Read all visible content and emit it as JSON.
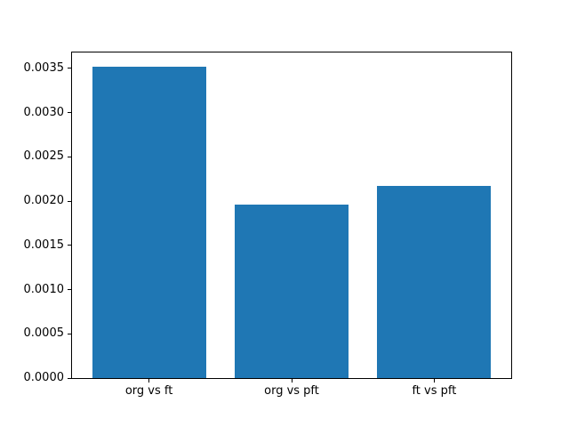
{
  "chart_data": {
    "type": "bar",
    "title": "",
    "xlabel": "",
    "ylabel": "",
    "categories": [
      "org vs ft",
      "org vs pft",
      "ft vs pft"
    ],
    "values": [
      0.00352,
      0.00196,
      0.00217
    ],
    "bar_color": "#1f77b4",
    "bar_width": 0.8,
    "xlim": [
      -0.54,
      2.54
    ],
    "ylim": [
      0,
      0.00368
    ],
    "yticks": [
      0.0,
      0.0005,
      0.001,
      0.0015,
      0.002,
      0.0025,
      0.003,
      0.0035
    ],
    "ytick_labels": [
      "0.0000",
      "0.0005",
      "0.0010",
      "0.0015",
      "0.0020",
      "0.0025",
      "0.0030",
      "0.0035"
    ],
    "grid": false,
    "legend": "none",
    "spine_color": "#000000",
    "background_color": "#ffffff"
  }
}
